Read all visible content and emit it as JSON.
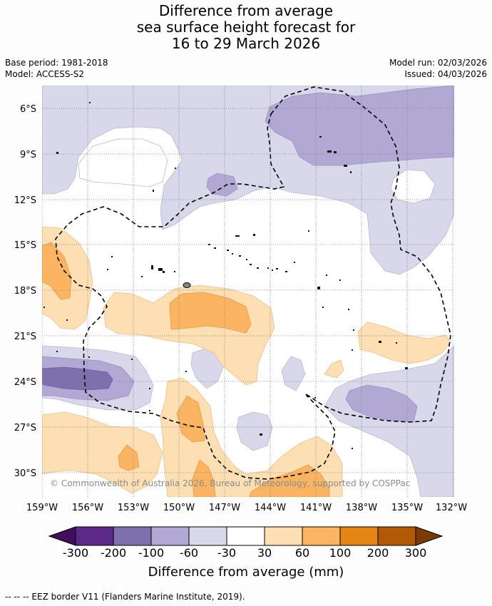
{
  "title": {
    "line1": "Difference from average",
    "line2": "sea surface height forecast for",
    "line3": "16 to 29 March 2026"
  },
  "meta": {
    "base_period": "Base period: 1981-2018",
    "model": "Model: ACCESS-S2",
    "model_run": "Model run: 02/03/2026",
    "issued": "Issued: 04/03/2026"
  },
  "map": {
    "lat_labels": [
      "6°S",
      "9°S",
      "12°S",
      "15°S",
      "18°S",
      "21°S",
      "24°S",
      "27°S",
      "30°S"
    ],
    "lon_labels": [
      "159°W",
      "156°W",
      "153°W",
      "150°W",
      "147°W",
      "144°W",
      "141°W",
      "138°W",
      "135°W",
      "132°W"
    ],
    "copyright": "© Commonwealth of Australia 2026, Bureau of Meteorology, supported by COSPPac"
  },
  "colorbar": {
    "labels": [
      "-300",
      "-200",
      "-100",
      "-60",
      "-30",
      "30",
      "60",
      "100",
      "200",
      "300"
    ],
    "colors": [
      "#3f0f5e",
      "#5b2a86",
      "#7e70ad",
      "#b1a9d3",
      "#d8d8ea",
      "#ffffff",
      "#fddfb3",
      "#fbb562",
      "#e58516",
      "#b35806",
      "#7d3a07"
    ],
    "title": "Difference from average (mm)"
  },
  "legend": {
    "eez": "--  --  -- EEZ border V11 (Flanders Marine Institute, 2019)."
  }
}
